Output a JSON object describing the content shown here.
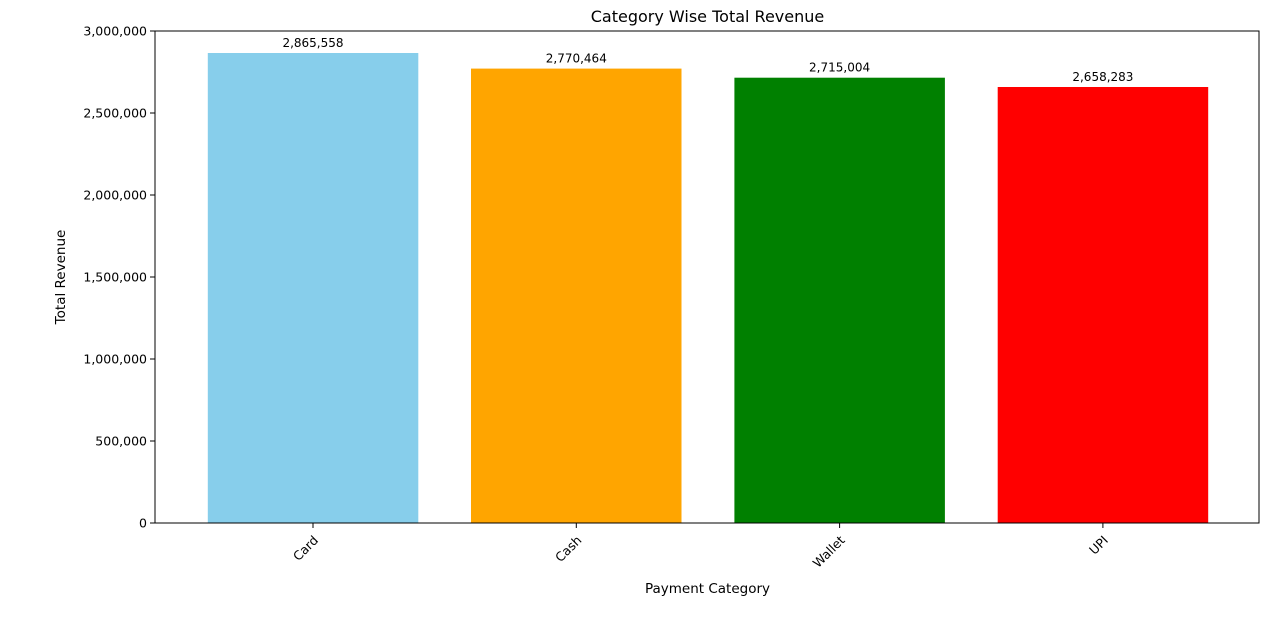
{
  "chart_data": {
    "type": "bar",
    "title": "Category Wise Total Revenue",
    "xlabel": "Payment Category",
    "ylabel": "Total Revenue",
    "categories": [
      "Card",
      "Cash",
      "Wallet",
      "UPI"
    ],
    "values": [
      2865558,
      2770464,
      2715004,
      2658283
    ],
    "data_labels": [
      "2,865,558",
      "2,770,464",
      "2,715,004",
      "2,658,283"
    ],
    "colors": [
      "#87ceeb",
      "#ffa500",
      "#008000",
      "#ff0000"
    ],
    "ylim": [
      0,
      3000000
    ],
    "yticks": [
      0,
      500000,
      1000000,
      1500000,
      2000000,
      2500000,
      3000000
    ],
    "ytick_labels": [
      "0",
      "500,000",
      "1,000,000",
      "1,500,000",
      "2,000,000",
      "2,500,000",
      "3,000,000"
    ],
    "grid": false,
    "xtick_rotation": "45"
  }
}
